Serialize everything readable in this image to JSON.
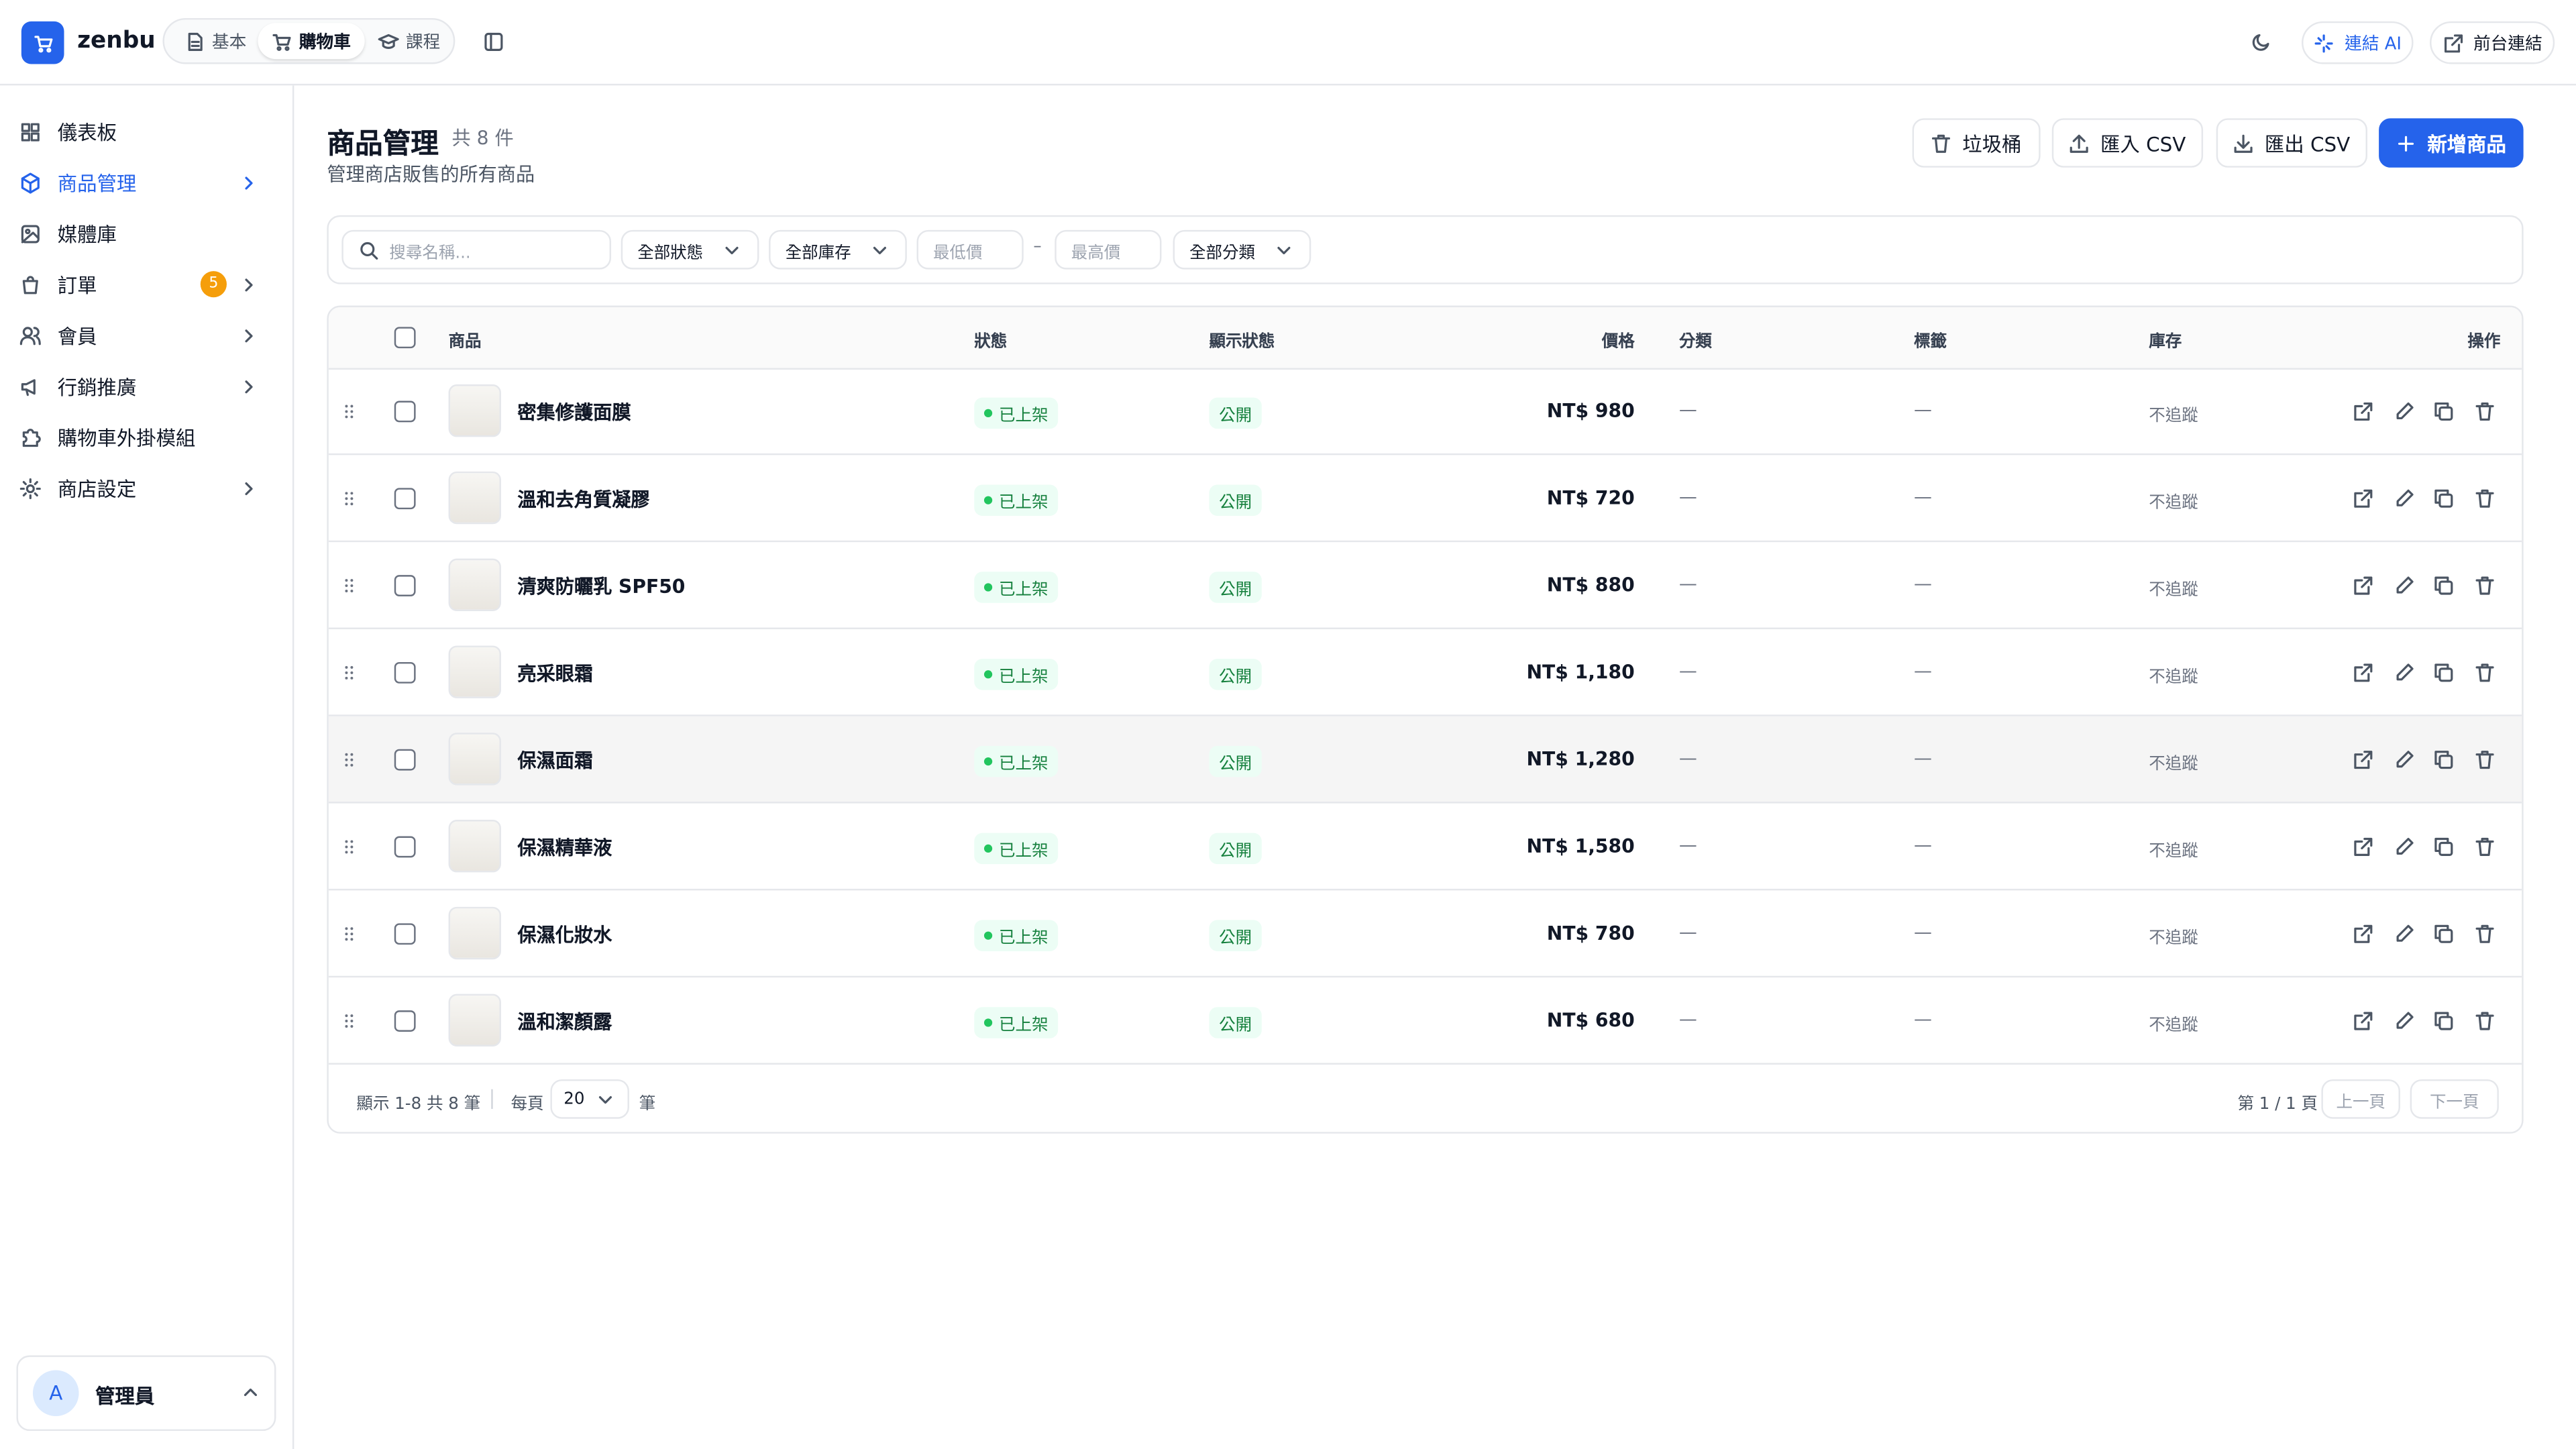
{
  "header": {
    "brand": "zenbu",
    "tabs": [
      "基本",
      "購物車",
      "課程"
    ],
    "ai": "連結 AI",
    "frontend": "前台連結"
  },
  "sidebar": {
    "items": [
      {
        "label": "儀表板"
      },
      {
        "label": "商品管理",
        "chevron": true,
        "active": true
      },
      {
        "label": "媒體庫"
      },
      {
        "label": "訂單",
        "badge": 5,
        "chevron": true
      },
      {
        "label": "會員",
        "chevron": true
      },
      {
        "label": "行銷推廣",
        "chevron": true
      },
      {
        "label": "購物車外掛模組"
      },
      {
        "label": "商店設定",
        "chevron": true
      }
    ],
    "user": {
      "initial": "A",
      "name": "管理員"
    }
  },
  "page": {
    "title": "商品管理",
    "count": "共 8 件",
    "subtitle": "管理商店販售的所有商品",
    "actions": [
      "垃圾桶",
      "匯入 CSV",
      "匯出 CSV",
      "新增商品"
    ]
  },
  "filters": {
    "search": "搜尋名稱...",
    "status": "全部狀態",
    "stock": "全部庫存",
    "min": "最低價",
    "dash": "–",
    "max": "最高價",
    "category": "全部分類"
  },
  "table": {
    "columns": [
      "商品",
      "狀態",
      "顯示狀態",
      "價格",
      "分類",
      "標籤",
      "庫存",
      "操作"
    ],
    "rows": [
      {
        "name": "密集修護面膜",
        "status": "已上架",
        "visibility": "公開",
        "price": "NT$ 980",
        "category": "—",
        "tags": "—",
        "stock": "不追蹤"
      },
      {
        "name": "溫和去角質凝膠",
        "status": "已上架",
        "visibility": "公開",
        "price": "NT$ 720",
        "category": "—",
        "tags": "—",
        "stock": "不追蹤"
      },
      {
        "name": "清爽防曬乳 SPF50",
        "status": "已上架",
        "visibility": "公開",
        "price": "NT$ 880",
        "category": "—",
        "tags": "—",
        "stock": "不追蹤"
      },
      {
        "name": "亮采眼霜",
        "status": "已上架",
        "visibility": "公開",
        "price": "NT$ 1,180",
        "category": "—",
        "tags": "—",
        "stock": "不追蹤"
      },
      {
        "name": "保濕面霜",
        "status": "已上架",
        "visibility": "公開",
        "price": "NT$ 1,280",
        "category": "—",
        "tags": "—",
        "stock": "不追蹤"
      },
      {
        "name": "保濕精華液",
        "status": "已上架",
        "visibility": "公開",
        "price": "NT$ 1,580",
        "category": "—",
        "tags": "—",
        "stock": "不追蹤"
      },
      {
        "name": "保濕化妝水",
        "status": "已上架",
        "visibility": "公開",
        "price": "NT$ 780",
        "category": "—",
        "tags": "—",
        "stock": "不追蹤"
      },
      {
        "name": "溫和潔顏露",
        "status": "已上架",
        "visibility": "公開",
        "price": "NT$ 680",
        "category": "—",
        "tags": "—",
        "stock": "不追蹤"
      }
    ]
  },
  "footer": {
    "showing": "顯示 1-8 共 8 筆",
    "per_page": "每頁",
    "page_size": "20",
    "unit": "筆",
    "pages": "第 1 / 1 頁",
    "prev": "上一頁",
    "next": "下一頁"
  }
}
